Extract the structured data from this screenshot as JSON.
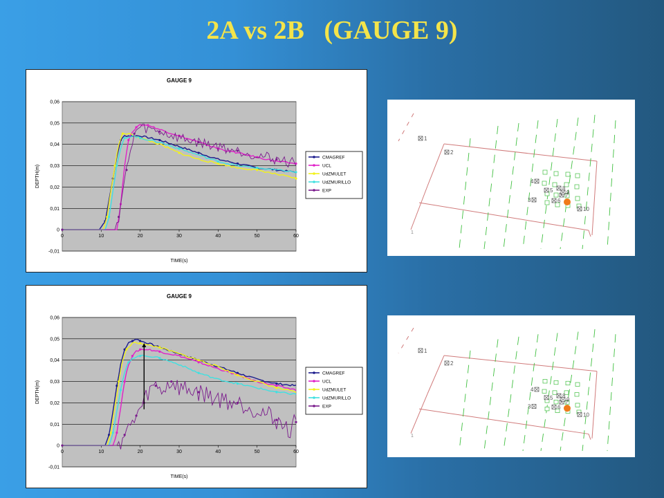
{
  "slide": {
    "title": "2A vs 2B   (GAUGE 9)"
  },
  "chart_data": [
    {
      "type": "line",
      "title": "GAUGE 9",
      "xlabel": "TIME(s)",
      "ylabel": "DEPTH(m)",
      "xlim": [
        0,
        60
      ],
      "ylim": [
        -0.01,
        0.06
      ],
      "xticks": [
        "0",
        "10",
        "20",
        "30",
        "40",
        "50",
        "60"
      ],
      "yticks": [
        "-0,01",
        "0",
        "0,01",
        "0,02",
        "0,03",
        "0,04",
        "0,05",
        "0,06"
      ],
      "grid": true,
      "legend_position": "right",
      "series": [
        {
          "name": "CMAGREF",
          "color": "#1a1a8c",
          "x": [
            0,
            9.5,
            11,
            12,
            13,
            14,
            15,
            16,
            18,
            20,
            25,
            30,
            35,
            40,
            45,
            50,
            55,
            60
          ],
          "y": [
            0,
            0,
            0.004,
            0.014,
            0.024,
            0.034,
            0.042,
            0.044,
            0.044,
            0.044,
            0.042,
            0.039,
            0.036,
            0.033,
            0.031,
            0.029,
            0.028,
            0.027
          ]
        },
        {
          "name": "UCL",
          "color": "#e020c8",
          "x": [
            0,
            14,
            15,
            16,
            17,
            18,
            19,
            20,
            22,
            25,
            30,
            35,
            40,
            45,
            50,
            55,
            60
          ],
          "y": [
            0,
            0,
            0.012,
            0.03,
            0.042,
            0.046,
            0.048,
            0.049,
            0.049,
            0.047,
            0.044,
            0.041,
            0.038,
            0.036,
            0.034,
            0.032,
            0.031
          ]
        },
        {
          "name": "UdZMULET",
          "color": "#f2f21a",
          "x": [
            0,
            10.5,
            11.5,
            12.5,
            13.5,
            14.5,
            15.5,
            17,
            20,
            25,
            30,
            35,
            40,
            45,
            50,
            55,
            60
          ],
          "y": [
            0,
            0,
            0.006,
            0.018,
            0.03,
            0.04,
            0.045,
            0.045,
            0.043,
            0.04,
            0.036,
            0.033,
            0.031,
            0.029,
            0.028,
            0.026,
            0.024
          ]
        },
        {
          "name": "UdZMURILLO",
          "color": "#40e0e0",
          "x": [
            0,
            11,
            12,
            13,
            14,
            15,
            16,
            18,
            20,
            25,
            30,
            35,
            40,
            45,
            50,
            55,
            60
          ],
          "y": [
            0,
            0,
            0.006,
            0.018,
            0.03,
            0.038,
            0.043,
            0.044,
            0.043,
            0.041,
            0.038,
            0.035,
            0.032,
            0.03,
            0.029,
            0.028,
            0.027
          ]
        },
        {
          "name": "EXP",
          "color": "#7a1a8c",
          "x": [
            0,
            13.5,
            14.5,
            15.5,
            16.5,
            17.5,
            18.5,
            20,
            25,
            30,
            35,
            40,
            45,
            50,
            55,
            60
          ],
          "y": [
            0,
            0,
            0.006,
            0.018,
            0.028,
            0.036,
            0.045,
            0.048,
            0.046,
            0.043,
            0.041,
            0.039,
            0.037,
            0.035,
            0.033,
            0.031
          ]
        }
      ]
    },
    {
      "type": "line",
      "title": "GAUGE 9",
      "xlabel": "TIME(s)",
      "ylabel": "DEPTH(m)",
      "xlim": [
        0,
        60
      ],
      "ylim": [
        -0.01,
        0.06
      ],
      "xticks": [
        "0",
        "10",
        "20",
        "30",
        "40",
        "50",
        "60"
      ],
      "yticks": [
        "-0,01",
        "0",
        "0,01",
        "0,02",
        "0,03",
        "0,04",
        "0,05",
        "0,06"
      ],
      "grid": true,
      "legend_position": "right",
      "annotation": {
        "type": "vertical-arrow",
        "x": 21,
        "y_from": 0.017,
        "y_to": 0.048
      },
      "series": [
        {
          "name": "CMAGREF",
          "color": "#1a1a8c",
          "x": [
            0,
            11,
            12,
            13,
            14,
            15,
            16,
            17,
            18,
            19,
            20,
            22,
            25,
            30,
            35,
            40,
            45,
            50,
            55,
            60
          ],
          "y": [
            0,
            0,
            0.005,
            0.016,
            0.028,
            0.038,
            0.045,
            0.048,
            0.049,
            0.05,
            0.049,
            0.048,
            0.046,
            0.043,
            0.04,
            0.037,
            0.034,
            0.031,
            0.029,
            0.028
          ]
        },
        {
          "name": "UCL",
          "color": "#e020c8",
          "x": [
            0,
            13,
            14,
            15,
            16,
            17,
            18,
            19,
            20,
            22,
            25,
            30,
            35,
            40,
            45,
            50,
            55,
            60
          ],
          "y": [
            0,
            0,
            0.006,
            0.018,
            0.03,
            0.038,
            0.042,
            0.044,
            0.045,
            0.045,
            0.044,
            0.042,
            0.039,
            0.036,
            0.033,
            0.03,
            0.028,
            0.026
          ]
        },
        {
          "name": "UdZMULET",
          "color": "#f2f21a",
          "x": [
            0,
            11.5,
            12.5,
            13.5,
            14.5,
            15.5,
            16.5,
            18,
            20,
            22,
            25,
            30,
            35,
            40,
            45,
            50,
            55,
            60
          ],
          "y": [
            0,
            0,
            0.006,
            0.018,
            0.03,
            0.04,
            0.045,
            0.048,
            0.048,
            0.047,
            0.046,
            0.043,
            0.04,
            0.037,
            0.033,
            0.03,
            0.027,
            0.025
          ]
        },
        {
          "name": "UdZMURILLO",
          "color": "#40e0e0",
          "x": [
            0,
            12,
            13,
            14,
            15,
            16,
            17,
            18,
            20,
            22,
            25,
            30,
            35,
            40,
            45,
            50,
            55,
            60
          ],
          "y": [
            0,
            0,
            0.006,
            0.016,
            0.026,
            0.034,
            0.039,
            0.041,
            0.042,
            0.042,
            0.041,
            0.038,
            0.034,
            0.031,
            0.029,
            0.027,
            0.025,
            0.024
          ]
        },
        {
          "name": "EXP",
          "color": "#7a1a8c",
          "x": [
            0,
            14,
            16,
            18,
            19,
            20,
            21,
            22,
            24,
            26,
            28,
            30,
            35,
            40,
            45,
            50,
            55,
            58,
            60
          ],
          "y": [
            0,
            0,
            0.005,
            0.01,
            0.014,
            0.017,
            0.02,
            0.025,
            0.028,
            0.026,
            0.03,
            0.027,
            0.025,
            0.022,
            0.02,
            0.017,
            0.012,
            0.007,
            0.011
          ]
        }
      ]
    }
  ],
  "maps": [
    {
      "gauge_labels": [
        "1",
        "2",
        "3",
        "4",
        "5",
        "6",
        "7",
        "8",
        "9",
        "10"
      ],
      "highlighted_gauge": "9",
      "marker_color": "#f07a1a"
    },
    {
      "gauge_labels": [
        "1",
        "2",
        "3",
        "4",
        "5",
        "6",
        "7",
        "8",
        "9",
        "10"
      ],
      "highlighted_gauge": "9",
      "marker_color": "#f07a1a"
    }
  ]
}
